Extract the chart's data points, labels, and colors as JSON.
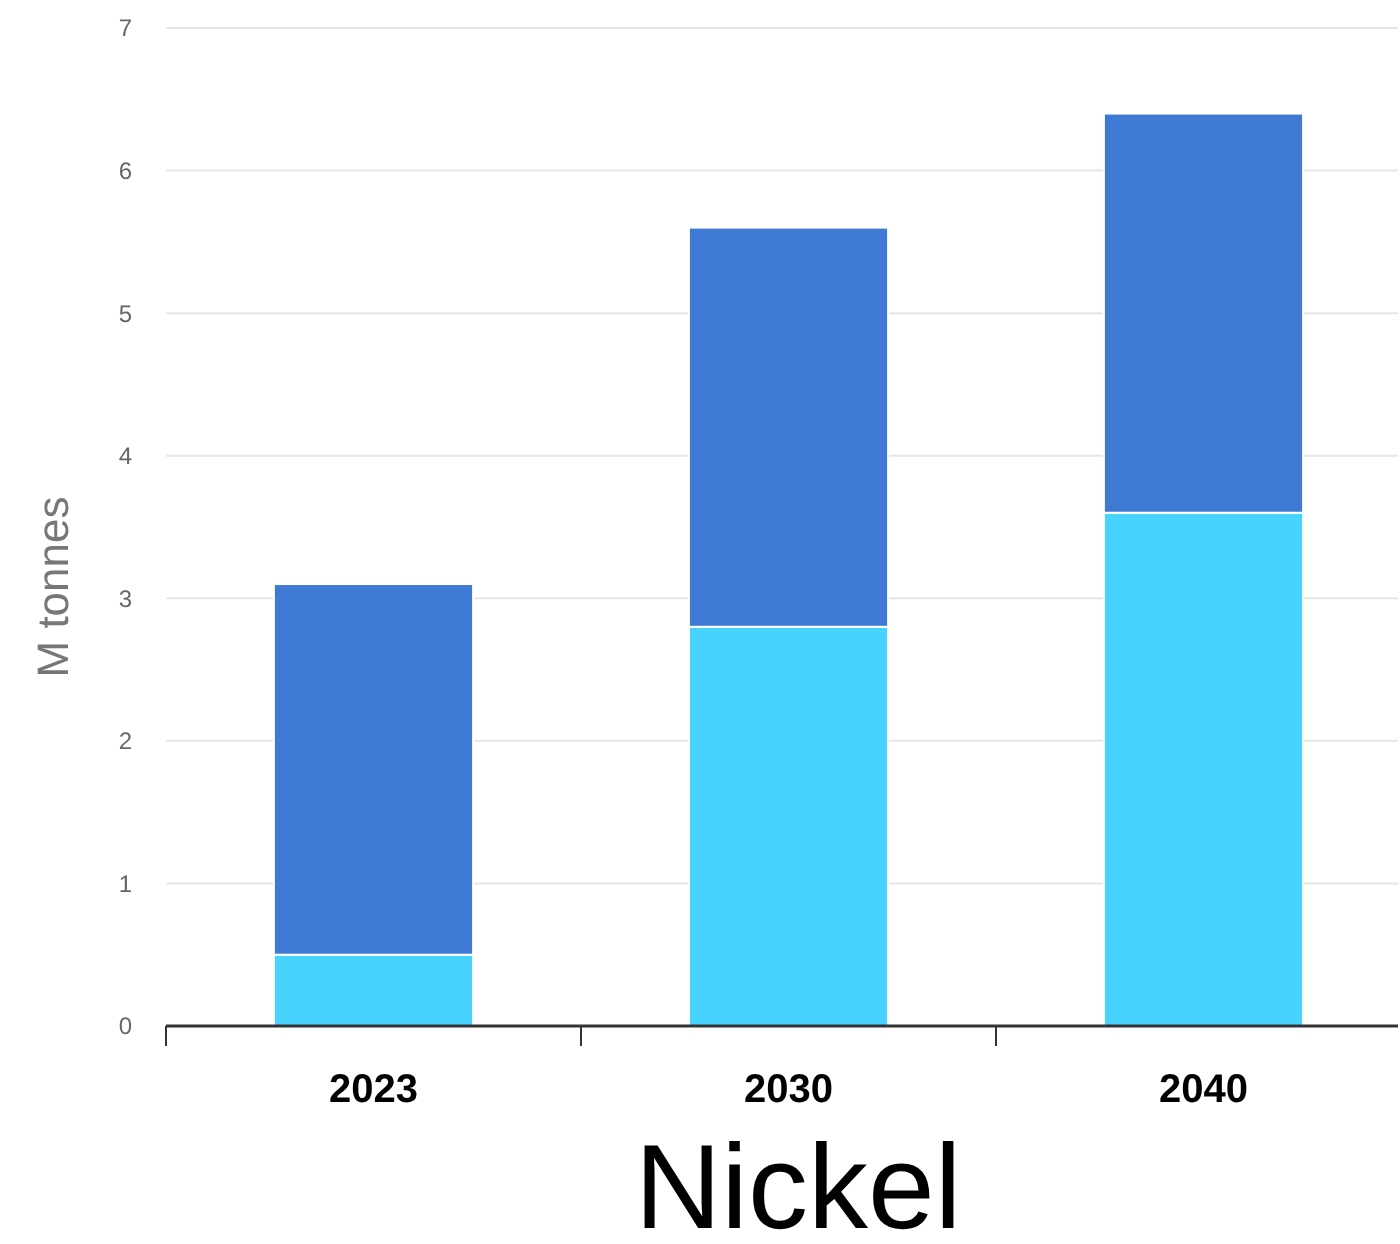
{
  "chart_data": {
    "type": "bar",
    "title": "Nickel",
    "ylabel": "M tonnes",
    "categories": [
      "2023",
      "2030",
      "2040"
    ],
    "stacked": true,
    "series": [
      {
        "color": "#48d3ff",
        "values": [
          0.5,
          2.8,
          3.6
        ]
      },
      {
        "color": "#3e7ad3",
        "values": [
          2.6,
          2.8,
          2.8
        ]
      }
    ],
    "ylim": [
      0,
      7
    ],
    "yticks": [
      0,
      1,
      2,
      3,
      4,
      5,
      6,
      7
    ],
    "grid": "y"
  }
}
